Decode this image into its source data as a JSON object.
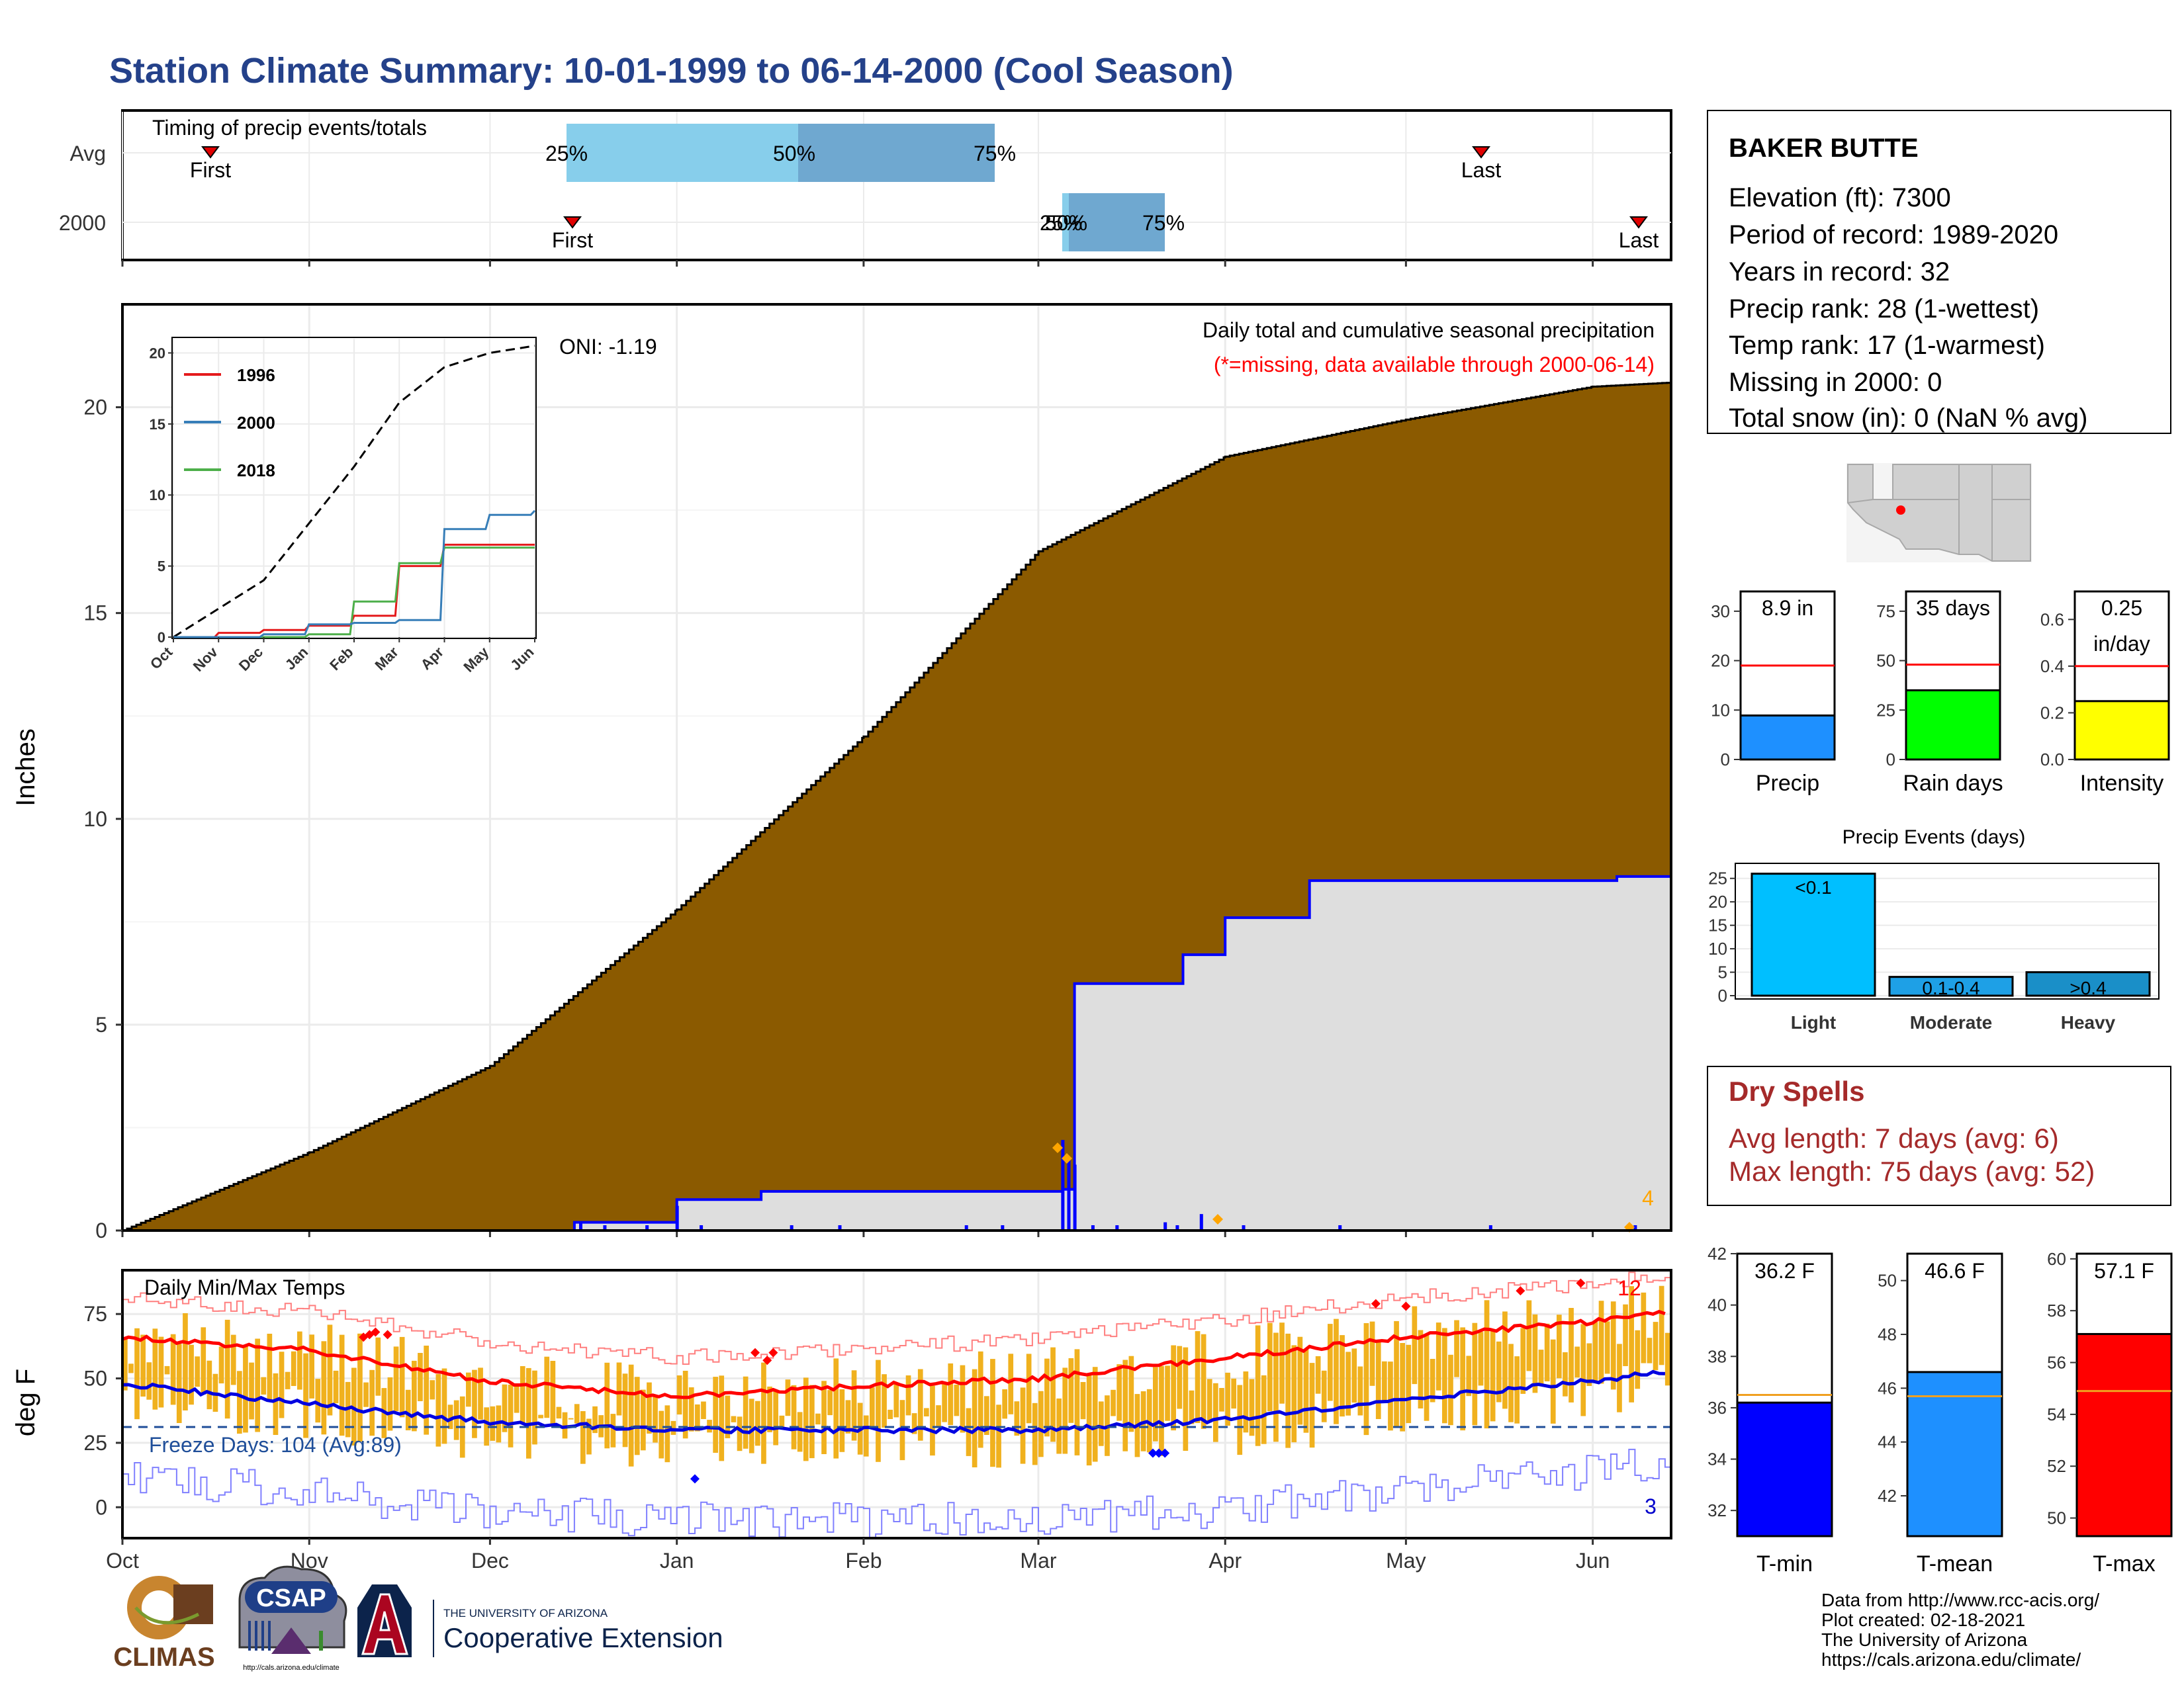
{
  "title": "Station Climate Summary: 10-01-1999 to 06-14-2000 (Cool Season)",
  "timing": {
    "label": "Timing of precip events/totals",
    "rows": [
      "Avg",
      "2000"
    ],
    "first_label": "First",
    "last_label": "Last",
    "p25": "25%",
    "p50": "50%",
    "p75": "75%"
  },
  "precip_panel": {
    "ylabel": "Inches",
    "header": "Daily total and cumulative seasonal precipitation",
    "subheader": "(*=missing, data available through 2000-06-14)",
    "oni": "ONI: -1.19",
    "corner_count": "4"
  },
  "temp_panel": {
    "ylabel": "deg F",
    "header": "Daily Min/Max Temps",
    "freeze": "Freeze Days: 104 (Avg:89)",
    "max_count": "12",
    "min_count": "3"
  },
  "month_labels": [
    "Oct",
    "Nov",
    "Dec",
    "Jan",
    "Feb",
    "Mar",
    "Apr",
    "May",
    "Jun"
  ],
  "inset": {
    "legend": [
      {
        "name": "1996",
        "color": "#e41a1c"
      },
      {
        "name": "2000",
        "color": "#377eb8"
      },
      {
        "name": "2018",
        "color": "#4daf4a"
      }
    ],
    "yticks": [
      "0",
      "5",
      "10",
      "15",
      "20"
    ],
    "xticks": [
      "Oct",
      "Nov",
      "Dec",
      "Jan",
      "Feb",
      "Mar",
      "Apr",
      "May",
      "Jun"
    ]
  },
  "station": {
    "name": "BAKER BUTTE",
    "lines": [
      "Elevation (ft): 7300",
      "Period of record: 1989-2020",
      "Years in record: 32",
      "Precip rank: 28 (1-wettest)",
      "Temp rank: 17 (1-warmest)",
      "Missing in 2000: 0",
      "Total snow (in): 0 (NaN % avg)"
    ]
  },
  "mini_bars": [
    {
      "label": "Precip",
      "value_text": "8.9 in",
      "value_text2": "",
      "value": 8.9,
      "avg": 19,
      "ymax": 34,
      "ticks": [
        "0",
        "10",
        "20",
        "30"
      ],
      "color": "#1e90ff"
    },
    {
      "label": "Rain days",
      "value_text": "35 days",
      "value_text2": "",
      "value": 35,
      "avg": 48,
      "ymax": 85,
      "ticks": [
        "0",
        "25",
        "50",
        "75"
      ],
      "color": "#00ff00"
    },
    {
      "label": "Intensity",
      "value_text": "0.25",
      "value_text2": "in/day",
      "value": 0.25,
      "avg": 0.4,
      "ymax": 0.72,
      "ticks": [
        "0.0",
        "0.2",
        "0.4",
        "0.6"
      ],
      "color": "#ffff00"
    }
  ],
  "precip_events": {
    "title": "Precip Events (days)",
    "categories": [
      "Light",
      "Moderate",
      "Heavy"
    ],
    "bar_labels": [
      "<0.1",
      "0.1-0.4",
      ">0.4"
    ],
    "values": [
      26,
      4,
      5
    ],
    "colors": [
      "#00bfff",
      "#1ea0e6",
      "#1a8fc8"
    ],
    "ticks": [
      "0",
      "5",
      "10",
      "15",
      "20",
      "25"
    ]
  },
  "dry_spells": {
    "title": "Dry Spells",
    "avg": "Avg length: 7 days (avg: 6)",
    "max": "Max length: 75 days (avg: 52)"
  },
  "temp_bars": [
    {
      "label": "T-min",
      "value_text": "36.2 F",
      "value": 36.2,
      "avg": 36.5,
      "ymin": 31,
      "ymax": 42,
      "ticks": [
        "32",
        "34",
        "36",
        "38",
        "40",
        "42"
      ],
      "color": "#0000ff"
    },
    {
      "label": "T-mean",
      "value_text": "46.6 F",
      "value": 46.6,
      "avg": 45.7,
      "ymin": 40.5,
      "ymax": 51,
      "ticks": [
        "42",
        "44",
        "46",
        "48",
        "50"
      ],
      "color": "#1e90ff"
    },
    {
      "label": "T-max",
      "value_text": "57.1 F",
      "value": 57.1,
      "avg": 54.9,
      "ymin": 49.3,
      "ymax": 60.2,
      "ticks": [
        "50",
        "52",
        "54",
        "56",
        "58",
        "60"
      ],
      "color": "#ff0000"
    }
  ],
  "footer": {
    "credits": [
      "Data from http://www.rcc-acis.org/",
      "Plot created: 02-18-2021",
      "The University of Arizona",
      "https://cals.arizona.edu/climate/"
    ],
    "ua_small": "THE UNIVERSITY OF ARIZONA",
    "ua_big": "Cooperative Extension",
    "climas": "CLIMAS",
    "csap": "CSAP",
    "csap_url": "http://cals.arizona.edu/climate"
  },
  "chart_data": [
    {
      "type": "area",
      "title": "Daily total and cumulative seasonal precipitation",
      "ylabel": "Inches",
      "ylim": [
        0,
        22.5
      ],
      "x_axis": "day of season, 1999-10-01 to 2000-06-14",
      "series": [
        {
          "name": "Average cumulative",
          "x": [
            "1999-10-01",
            "1999-11-01",
            "1999-12-01",
            "2000-01-01",
            "2000-02-01",
            "2000-03-01",
            "2000-04-01",
            "2000-05-01",
            "2000-06-01",
            "2000-06-14"
          ],
          "values": [
            0,
            1.9,
            4.0,
            7.8,
            12.0,
            16.5,
            18.8,
            19.7,
            20.5,
            20.6
          ]
        },
        {
          "name": "2000",
          "x": [
            "1999-10-01",
            "1999-12-15",
            "2000-01-01",
            "2000-01-15",
            "2000-03-05",
            "2000-03-07",
            "2000-03-25",
            "2000-04-01",
            "2000-04-15",
            "2000-06-05",
            "2000-06-14"
          ],
          "values": [
            0,
            0.2,
            0.75,
            0.95,
            1.0,
            6.0,
            6.7,
            7.6,
            8.5,
            8.6,
            8.9
          ]
        }
      ],
      "daily_events": [
        {
          "date": "1999-12-16",
          "value": 0.2
        },
        {
          "date": "2000-01-01",
          "value": 0.6
        },
        {
          "date": "2000-03-05",
          "value": 2.2
        },
        {
          "date": "2000-03-06",
          "value": 1.8
        },
        {
          "date": "2000-03-07",
          "value": 1.6
        },
        {
          "date": "2000-03-22",
          "value": 0.2
        },
        {
          "date": "2000-03-28",
          "value": 0.4
        }
      ]
    },
    {
      "type": "line",
      "title": "Daily Min/Max Temps",
      "ylabel": "deg F",
      "ylim": [
        -12,
        92
      ],
      "x": [
        "1999-10-01",
        "1999-11-01",
        "1999-12-01",
        "2000-01-01",
        "2000-02-01",
        "2000-03-01",
        "2000-04-01",
        "2000-05-01",
        "2000-06-01",
        "2000-06-14"
      ],
      "series": [
        {
          "name": "Avg max",
          "values": [
            66,
            61,
            49,
            43,
            47,
            50,
            58,
            66,
            72,
            76
          ]
        },
        {
          "name": "Avg min",
          "values": [
            48,
            40,
            33,
            30,
            30,
            30,
            34,
            42,
            49,
            53
          ]
        }
      ],
      "reference_line": 32
    },
    {
      "type": "line",
      "title": "",
      "xlim": [
        "Oct",
        "Jun"
      ],
      "ylim": [
        0,
        21
      ],
      "series": [
        {
          "name": "Average",
          "x": [
            "Oct",
            "Nov",
            "Dec",
            "Jan",
            "Feb",
            "Mar",
            "Apr",
            "May",
            "Jun"
          ],
          "values": [
            0,
            2,
            4,
            8,
            12,
            16.5,
            19,
            20,
            20.5
          ]
        },
        {
          "name": "1996",
          "x": [
            "Oct",
            "Nov",
            "Dec",
            "Jan",
            "Feb",
            "Mar",
            "Apr",
            "May",
            "Jun"
          ],
          "values": [
            0,
            0.3,
            0.5,
            0.8,
            1.5,
            5.0,
            6.5,
            6.5,
            6.5
          ]
        },
        {
          "name": "2000",
          "x": [
            "Oct",
            "Nov",
            "Dec",
            "Jan",
            "Feb",
            "Mar",
            "Apr",
            "May",
            "Jun"
          ],
          "values": [
            0,
            0,
            0.2,
            0.9,
            1.0,
            1.2,
            7.6,
            8.6,
            8.9
          ]
        },
        {
          "name": "2018",
          "x": [
            "Oct",
            "Nov",
            "Dec",
            "Jan",
            "Feb",
            "Mar",
            "Apr",
            "May",
            "Jun"
          ],
          "values": [
            0,
            0,
            0,
            0.2,
            2.5,
            5.2,
            6.3,
            6.3,
            6.3
          ]
        }
      ]
    }
  ]
}
